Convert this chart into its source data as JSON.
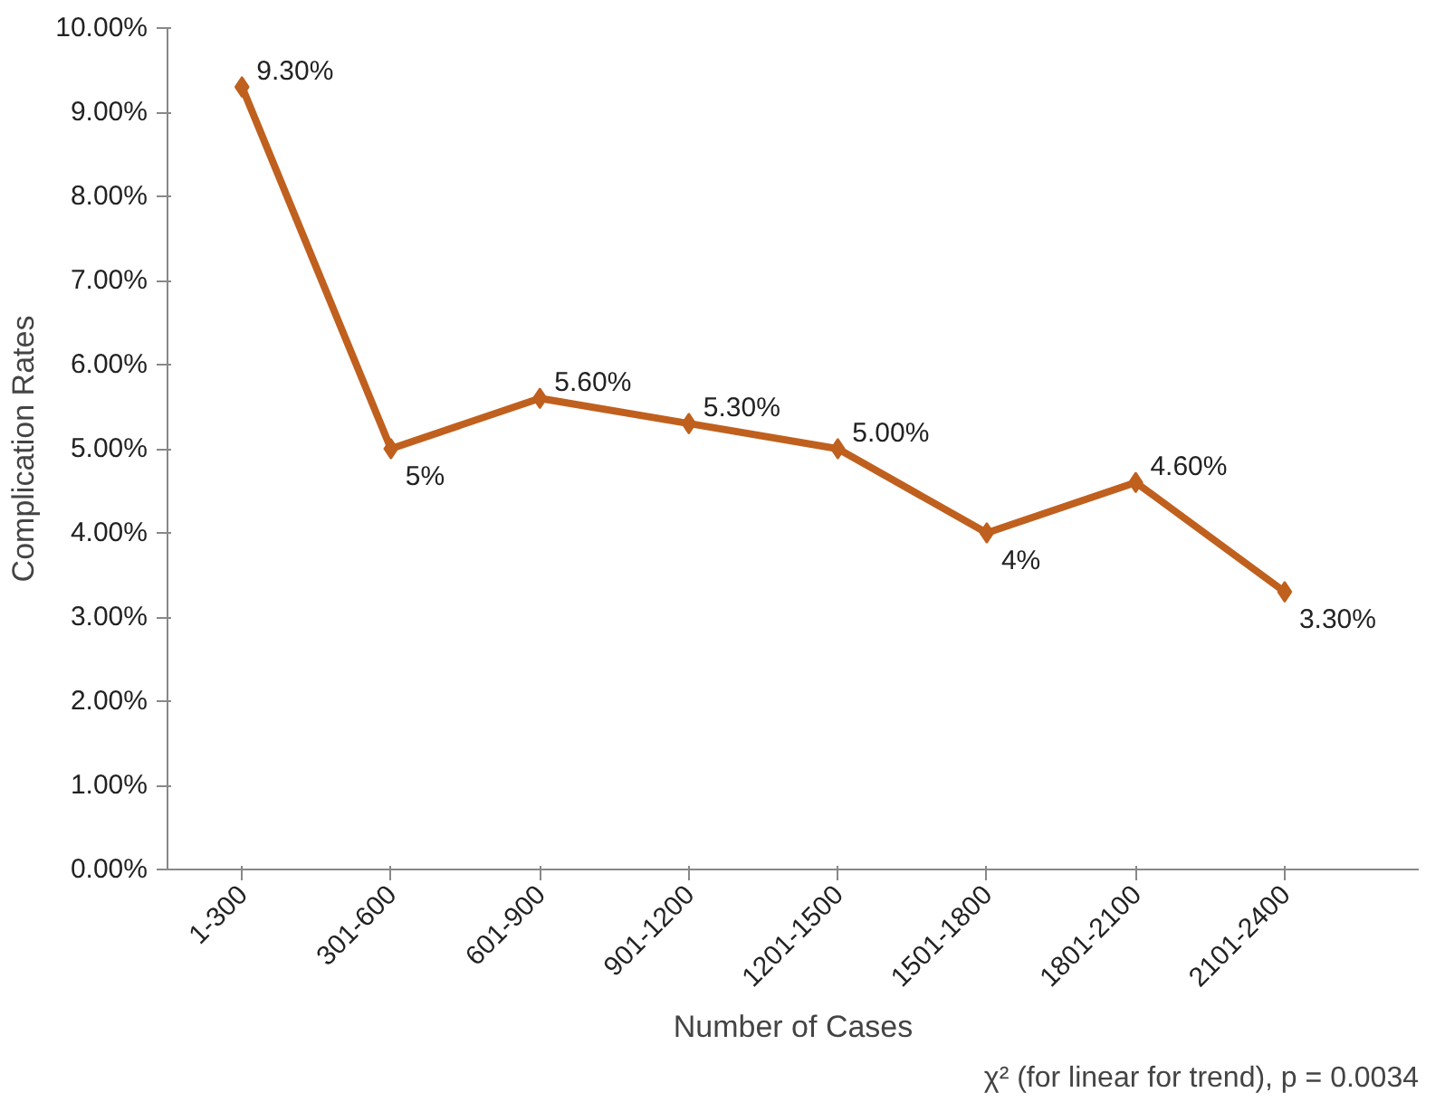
{
  "chart_data": {
    "type": "line",
    "xlabel": "Number of Cases",
    "ylabel": "Complication Rates",
    "categories": [
      "1-300",
      "301-600",
      "601-900",
      "901-1200",
      "1201-1500",
      "1501-1800",
      "1801-2100",
      "2101-2400"
    ],
    "series": [
      {
        "color": "#c0601e",
        "values": [
          9.3,
          5,
          5.6,
          5.3,
          5.0,
          4,
          4.6,
          3.3
        ],
        "value_labels": [
          "9.30%",
          "5%",
          "5.60%",
          "5.30%",
          "5.00%",
          "4%",
          "4.60%",
          "3.30%"
        ]
      }
    ],
    "ylim": [
      0,
      10
    ],
    "yticks": [
      {
        "value": 0,
        "label": "0.00%"
      },
      {
        "value": 1,
        "label": "1.00%"
      },
      {
        "value": 2,
        "label": "2.00%"
      },
      {
        "value": 3,
        "label": "3.00%"
      },
      {
        "value": 4,
        "label": "4.00%"
      },
      {
        "value": 5,
        "label": "5.00%"
      },
      {
        "value": 6,
        "label": "6.00%"
      },
      {
        "value": 7,
        "label": "7.00%"
      },
      {
        "value": 8,
        "label": "8.00%"
      },
      {
        "value": 9,
        "label": "9.00%"
      },
      {
        "value": 10,
        "label": "10.00%"
      }
    ],
    "marker": "diamond",
    "line_style": "solid",
    "grid": false,
    "annotations": [
      "χ² (for linear for trend), p = 0.0034"
    ]
  }
}
